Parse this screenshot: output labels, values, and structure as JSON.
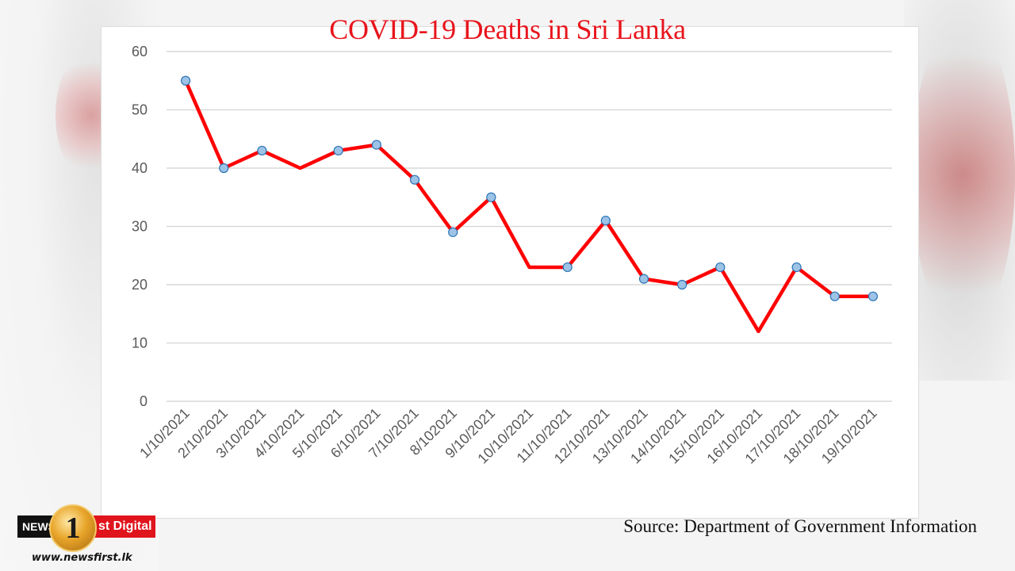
{
  "chart_data": {
    "type": "line",
    "title": "COVID-19 Deaths in Sri Lanka",
    "xlabel": "",
    "ylabel": "",
    "ylim": [
      0,
      60
    ],
    "yticks": [
      0,
      10,
      20,
      30,
      40,
      50,
      60
    ],
    "grid": true,
    "categories": [
      "1/10/2021",
      "2/10/2021",
      "3/10/2021",
      "4/10/2021",
      "5/10/2021",
      "6/10/2021",
      "7/10/2021",
      "8/102021",
      "9/10/2021",
      "10/10/2021",
      "11/10/2021",
      "12/10/2021",
      "13/10/2021",
      "14/10/2021",
      "15/10/2021",
      "16/10/2021",
      "17/10/2021",
      "18/10/2021",
      "19/10/2021"
    ],
    "series": [
      {
        "values": [
          55,
          40,
          43,
          40,
          43,
          44,
          38,
          29,
          35,
          23,
          23,
          31,
          21,
          20,
          23,
          12,
          23,
          18,
          18
        ],
        "markers": [
          true,
          true,
          true,
          false,
          true,
          true,
          true,
          true,
          true,
          false,
          true,
          true,
          true,
          true,
          true,
          false,
          true,
          true,
          true
        ],
        "line_color": "#ff0000",
        "marker_color": "#9dc3e6"
      }
    ]
  },
  "source": "Source: Department of Government Information",
  "logo": {
    "left_text": "NEWS",
    "number": "1",
    "right_text": "st Digital",
    "url": "www.newsfirst.lk"
  },
  "colors": {
    "title": "#e8141c",
    "gridline": "#d9d9d9",
    "tick_label": "#595959"
  }
}
